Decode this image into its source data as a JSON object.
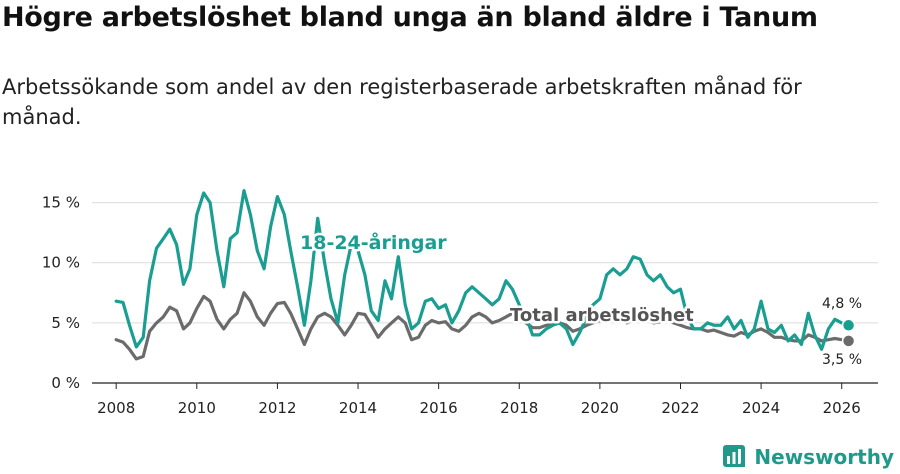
{
  "header": {
    "title": "Högre arbetslöshet bland unga än bland äldre i Tanum",
    "subtitle": "Arbetssökande som andel av den registerbaserade arbetskraften månad för månad."
  },
  "brand": {
    "name": "Newsworthy",
    "icon": "newsworthy-logo-icon"
  },
  "colors": {
    "youth": "#1a9e92",
    "total": "#6b6b6b",
    "grid": "#dcdcdc",
    "text": "#222222"
  },
  "chart_data": {
    "type": "line",
    "title": "Högre arbetslöshet bland unga än bland äldre i Tanum",
    "subtitle": "Arbetssökande som andel av den registerbaserade arbetskraften månad för månad.",
    "xlabel": "",
    "ylabel": "",
    "xlim": [
      2007.4,
      2026.9
    ],
    "ylim": [
      0,
      15.8
    ],
    "x_ticks": [
      2008,
      2010,
      2012,
      2014,
      2016,
      2018,
      2020,
      2022,
      2024,
      2026
    ],
    "x_tick_labels": [
      "2008",
      "2010",
      "2012",
      "2014",
      "2016",
      "2018",
      "2020",
      "2022",
      "2024",
      "2026"
    ],
    "y_ticks": [
      0,
      5,
      10,
      15
    ],
    "y_tick_labels": [
      "0 %",
      "5 %",
      "10 %",
      "15 %"
    ],
    "grid": true,
    "series": [
      {
        "name": "18-24-åringar",
        "label": "18-24-åringar",
        "end_label": "4,8 %",
        "x": [
          2008.0,
          2008.17,
          2008.33,
          2008.5,
          2008.67,
          2008.83,
          2009.0,
          2009.17,
          2009.33,
          2009.5,
          2009.67,
          2009.83,
          2010.0,
          2010.17,
          2010.33,
          2010.5,
          2010.67,
          2010.83,
          2011.0,
          2011.17,
          2011.33,
          2011.5,
          2011.67,
          2011.83,
          2012.0,
          2012.17,
          2012.33,
          2012.5,
          2012.67,
          2012.83,
          2013.0,
          2013.17,
          2013.33,
          2013.5,
          2013.67,
          2013.83,
          2014.0,
          2014.17,
          2014.33,
          2014.5,
          2014.67,
          2014.83,
          2015.0,
          2015.17,
          2015.33,
          2015.5,
          2015.67,
          2015.83,
          2016.0,
          2016.17,
          2016.33,
          2016.5,
          2016.67,
          2016.83,
          2017.0,
          2017.17,
          2017.33,
          2017.5,
          2017.67,
          2017.83,
          2018.0,
          2018.17,
          2018.33,
          2018.5,
          2018.67,
          2018.83,
          2019.0,
          2019.17,
          2019.33,
          2019.5,
          2019.67,
          2019.83,
          2020.0,
          2020.17,
          2020.33,
          2020.5,
          2020.67,
          2020.83,
          2021.0,
          2021.17,
          2021.33,
          2021.5,
          2021.67,
          2021.83,
          2022.0,
          2022.17,
          2022.33,
          2022.5,
          2022.67,
          2022.83,
          2023.0,
          2023.17,
          2023.33,
          2023.5,
          2023.67,
          2023.83,
          2024.0,
          2024.17,
          2024.33,
          2024.5,
          2024.67,
          2024.83,
          2025.0,
          2025.17,
          2025.33,
          2025.5,
          2025.67,
          2025.83,
          2026.0,
          2026.17
        ],
        "values": [
          6.8,
          6.7,
          4.8,
          3.0,
          3.8,
          8.5,
          11.2,
          12.0,
          12.8,
          11.5,
          8.2,
          9.5,
          14.0,
          15.8,
          15.0,
          11.0,
          8.0,
          12.0,
          12.5,
          16.0,
          14.0,
          11.0,
          9.5,
          13.0,
          15.5,
          14.0,
          11.0,
          8.0,
          4.8,
          8.5,
          13.7,
          10.0,
          7.0,
          5.0,
          9.0,
          11.5,
          11.0,
          9.0,
          6.0,
          5.2,
          8.5,
          7.0,
          10.5,
          6.5,
          4.5,
          5.0,
          6.8,
          7.0,
          6.2,
          6.5,
          5.0,
          6.0,
          7.5,
          8.0,
          7.5,
          7.0,
          6.5,
          7.0,
          8.5,
          7.8,
          6.5,
          5.5,
          4.0,
          4.0,
          4.5,
          4.8,
          5.0,
          4.5,
          3.2,
          4.2,
          5.5,
          6.5,
          7.0,
          9.0,
          9.5,
          9.0,
          9.5,
          10.5,
          10.3,
          9.0,
          8.5,
          9.0,
          8.0,
          7.5,
          7.8,
          5.5,
          4.5,
          4.5,
          5.0,
          4.8,
          4.8,
          5.5,
          4.5,
          5.2,
          3.8,
          4.5,
          6.8,
          4.5,
          4.2,
          4.8,
          3.5,
          4.0,
          3.2,
          5.8,
          4.0,
          2.8,
          4.5,
          5.3,
          5.0,
          4.8
        ]
      },
      {
        "name": "Total arbetslöshet",
        "label": "Total arbetslöshet",
        "end_label": "3,5 %",
        "x": [
          2008.0,
          2008.17,
          2008.33,
          2008.5,
          2008.67,
          2008.83,
          2009.0,
          2009.17,
          2009.33,
          2009.5,
          2009.67,
          2009.83,
          2010.0,
          2010.17,
          2010.33,
          2010.5,
          2010.67,
          2010.83,
          2011.0,
          2011.17,
          2011.33,
          2011.5,
          2011.67,
          2011.83,
          2012.0,
          2012.17,
          2012.33,
          2012.5,
          2012.67,
          2012.83,
          2013.0,
          2013.17,
          2013.33,
          2013.5,
          2013.67,
          2013.83,
          2014.0,
          2014.17,
          2014.33,
          2014.5,
          2014.67,
          2014.83,
          2015.0,
          2015.17,
          2015.33,
          2015.5,
          2015.67,
          2015.83,
          2016.0,
          2016.17,
          2016.33,
          2016.5,
          2016.67,
          2016.83,
          2017.0,
          2017.17,
          2017.33,
          2017.5,
          2017.67,
          2017.83,
          2018.0,
          2018.17,
          2018.33,
          2018.5,
          2018.67,
          2018.83,
          2019.0,
          2019.17,
          2019.33,
          2019.5,
          2019.67,
          2019.83,
          2020.0,
          2020.17,
          2020.33,
          2020.5,
          2020.67,
          2020.83,
          2021.0,
          2021.17,
          2021.33,
          2021.5,
          2021.67,
          2021.83,
          2022.0,
          2022.17,
          2022.33,
          2022.5,
          2022.67,
          2022.83,
          2023.0,
          2023.17,
          2023.33,
          2023.5,
          2023.67,
          2023.83,
          2024.0,
          2024.17,
          2024.33,
          2024.5,
          2024.67,
          2024.83,
          2025.0,
          2025.17,
          2025.33,
          2025.5,
          2025.67,
          2025.83,
          2026.0,
          2026.17
        ],
        "values": [
          3.6,
          3.4,
          2.8,
          2.0,
          2.2,
          4.3,
          5.0,
          5.5,
          6.3,
          6.0,
          4.5,
          5.0,
          6.2,
          7.2,
          6.8,
          5.3,
          4.5,
          5.3,
          5.8,
          7.5,
          6.8,
          5.5,
          4.8,
          5.8,
          6.6,
          6.7,
          5.8,
          4.5,
          3.2,
          4.5,
          5.5,
          5.8,
          5.5,
          4.8,
          4.0,
          4.8,
          5.8,
          5.7,
          4.8,
          3.8,
          4.5,
          5.0,
          5.5,
          5.0,
          3.6,
          3.8,
          4.8,
          5.2,
          5.0,
          5.1,
          4.5,
          4.3,
          4.8,
          5.5,
          5.8,
          5.5,
          5.0,
          5.2,
          5.5,
          5.8,
          5.4,
          5.0,
          4.6,
          4.6,
          4.8,
          5.0,
          5.0,
          4.8,
          4.3,
          4.5,
          4.8,
          5.0,
          5.2,
          5.5,
          5.8,
          5.5,
          5.0,
          5.3,
          5.5,
          5.3,
          5.0,
          5.1,
          5.2,
          5.0,
          4.8,
          4.6,
          4.5,
          4.5,
          4.3,
          4.4,
          4.2,
          4.0,
          3.9,
          4.2,
          4.0,
          4.3,
          4.5,
          4.2,
          3.8,
          3.8,
          3.6,
          3.5,
          3.5,
          4.0,
          3.8,
          3.5,
          3.6,
          3.7,
          3.6,
          3.5
        ]
      }
    ]
  }
}
